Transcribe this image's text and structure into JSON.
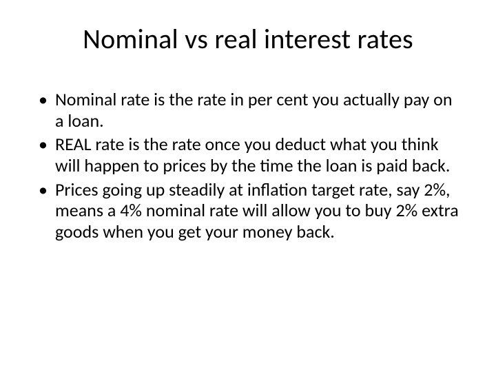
{
  "slide": {
    "title": "Nominal vs real interest rates",
    "bullets": [
      "Nominal rate is the rate in per cent you actually pay on a loan.",
      "REAL rate is the rate once you deduct what you think will happen to prices by the time the loan is paid back.",
      "Prices going up steadily at inflation target rate, say 2%, means a 4% nominal rate will allow you to buy 2% extra goods when you get your money back."
    ],
    "colors": {
      "background": "#ffffff",
      "text": "#000000"
    },
    "typography": {
      "title_fontsize": 40,
      "body_fontsize": 26,
      "font_family": "Calibri"
    }
  }
}
